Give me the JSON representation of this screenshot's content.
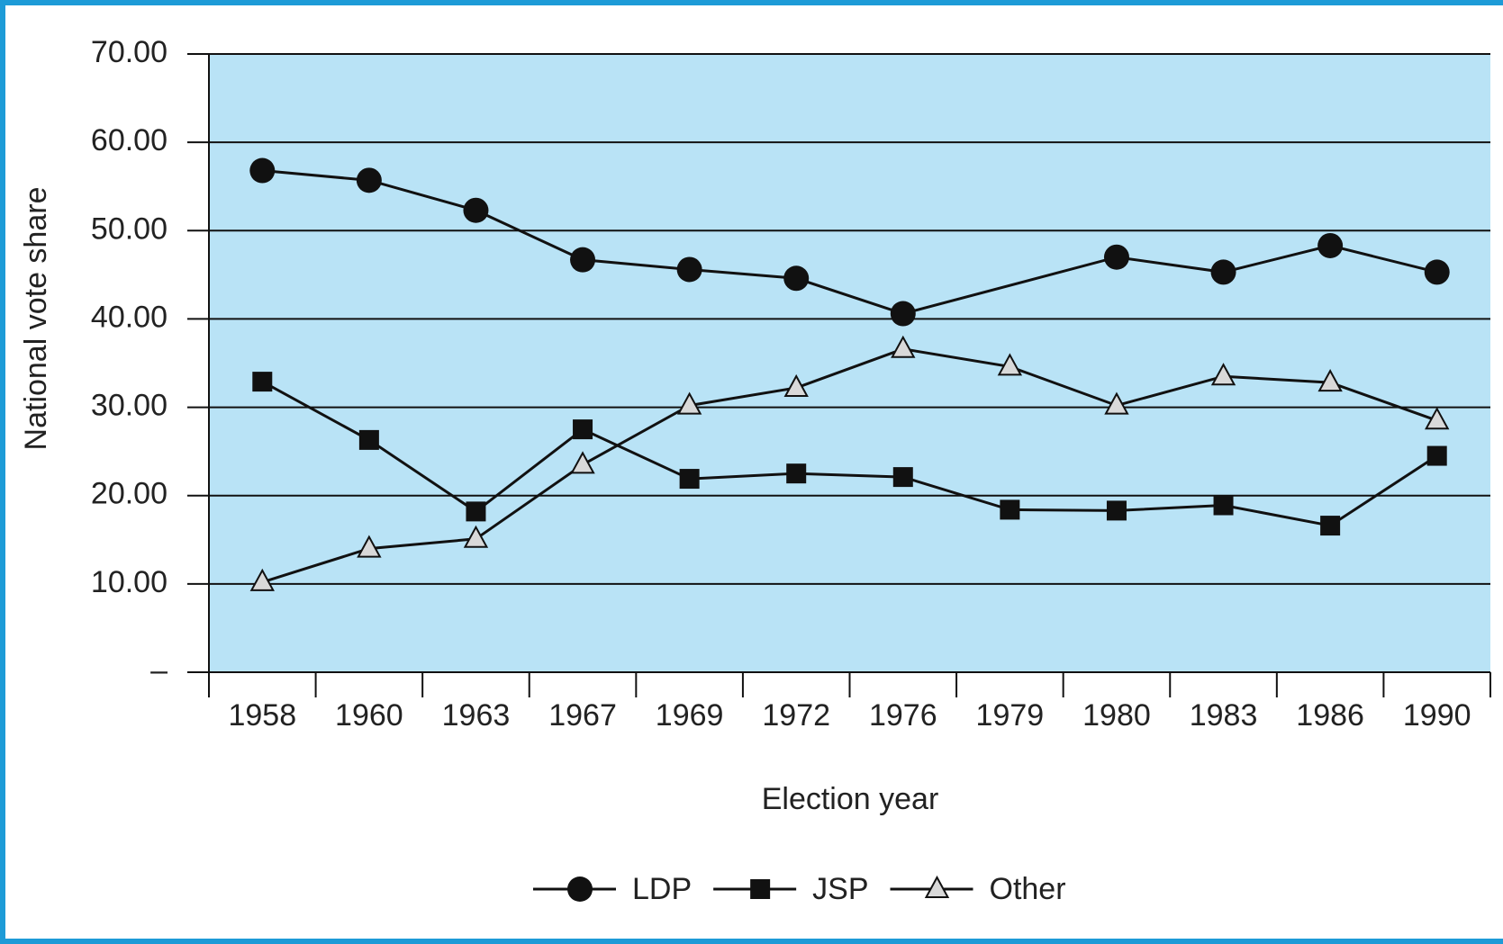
{
  "chart_data": {
    "type": "line",
    "xlabel": "Election year",
    "ylabel": "National vote share",
    "categories": [
      "1958",
      "1960",
      "1963",
      "1967",
      "1969",
      "1972",
      "1976",
      "1979",
      "1980",
      "1983",
      "1986",
      "1990"
    ],
    "series": [
      {
        "name": "LDP",
        "color": "#111111",
        "marker": "circle",
        "values": [
          56.8,
          55.7,
          52.3,
          46.7,
          45.6,
          44.6,
          40.6,
          null,
          47.0,
          45.3,
          48.3,
          45.3
        ]
      },
      {
        "name": "JSP",
        "color": "#111111",
        "marker": "square",
        "values": [
          32.9,
          26.3,
          18.2,
          27.5,
          21.9,
          22.5,
          22.1,
          18.4,
          18.3,
          18.9,
          16.6,
          24.5
        ]
      },
      {
        "name": "Other",
        "color": "#111111",
        "marker": "triangle",
        "values": [
          10.2,
          14.0,
          15.1,
          23.5,
          30.2,
          32.2,
          36.6,
          34.6,
          30.2,
          33.5,
          32.8,
          28.5
        ]
      }
    ],
    "span_gaps": true,
    "ylim": [
      0,
      70
    ],
    "yticks": [
      {
        "value": 0,
        "label": "–"
      },
      {
        "value": 10,
        "label": "10.00"
      },
      {
        "value": 20,
        "label": "20.00"
      },
      {
        "value": 30,
        "label": "30.00"
      },
      {
        "value": 40,
        "label": "40.00"
      },
      {
        "value": 50,
        "label": "50.00"
      },
      {
        "value": 60,
        "label": "60.00"
      },
      {
        "value": 70,
        "label": "70.00"
      }
    ],
    "grid": true,
    "plot_background": "#b9e3f6",
    "legend": "bottom"
  }
}
